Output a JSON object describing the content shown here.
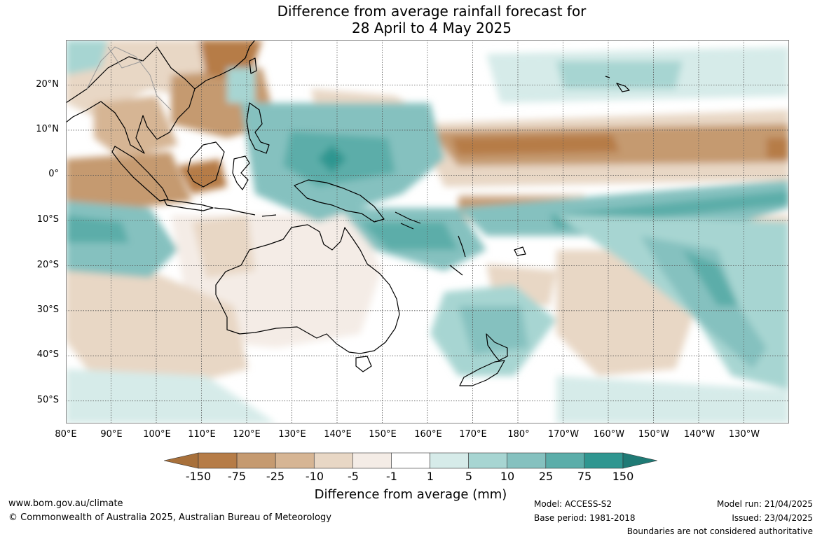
{
  "title": {
    "line1": "Difference from average rainfall forecast for",
    "line2": "28 April to 4 May 2025"
  },
  "map": {
    "lat_labels": [
      "20°N",
      "10°N",
      "0°",
      "10°S",
      "20°S",
      "30°S",
      "40°S",
      "50°S"
    ],
    "lon_labels": [
      "80°E",
      "90°E",
      "100°E",
      "110°E",
      "120°E",
      "130°E",
      "140°E",
      "150°E",
      "160°E",
      "170°E",
      "180°",
      "170°W",
      "160°W",
      "150°W",
      "140°W",
      "130°W"
    ],
    "lon_range": [
      80,
      240
    ],
    "lat_range": [
      -55,
      30
    ]
  },
  "legend": {
    "levels": [
      "-150",
      "-75",
      "-25",
      "-10",
      "-5",
      "-1",
      "1",
      "5",
      "10",
      "25",
      "75",
      "150"
    ],
    "colors": [
      "#a8703a",
      "#b67c47",
      "#c59a70",
      "#d6b594",
      "#e8d7c5",
      "#f4ece6",
      "#ffffff",
      "#d6ebe9",
      "#a7d5d2",
      "#85c1bf",
      "#5bada9",
      "#2f9690",
      "#1f7a75"
    ],
    "title": "Difference from average (mm)"
  },
  "footer": {
    "website": "www.bom.gov.au/climate",
    "copyright": "© Commonwealth of Australia 2025, Australian Bureau of Meteorology",
    "model": "Model: ACCESS-S2",
    "base_period": "Base period: 1981-2018",
    "model_run": "Model run: 21/04/2025",
    "issued": "Issued: 23/04/2025",
    "disclaimer": "Boundaries are not considered authoritative"
  }
}
